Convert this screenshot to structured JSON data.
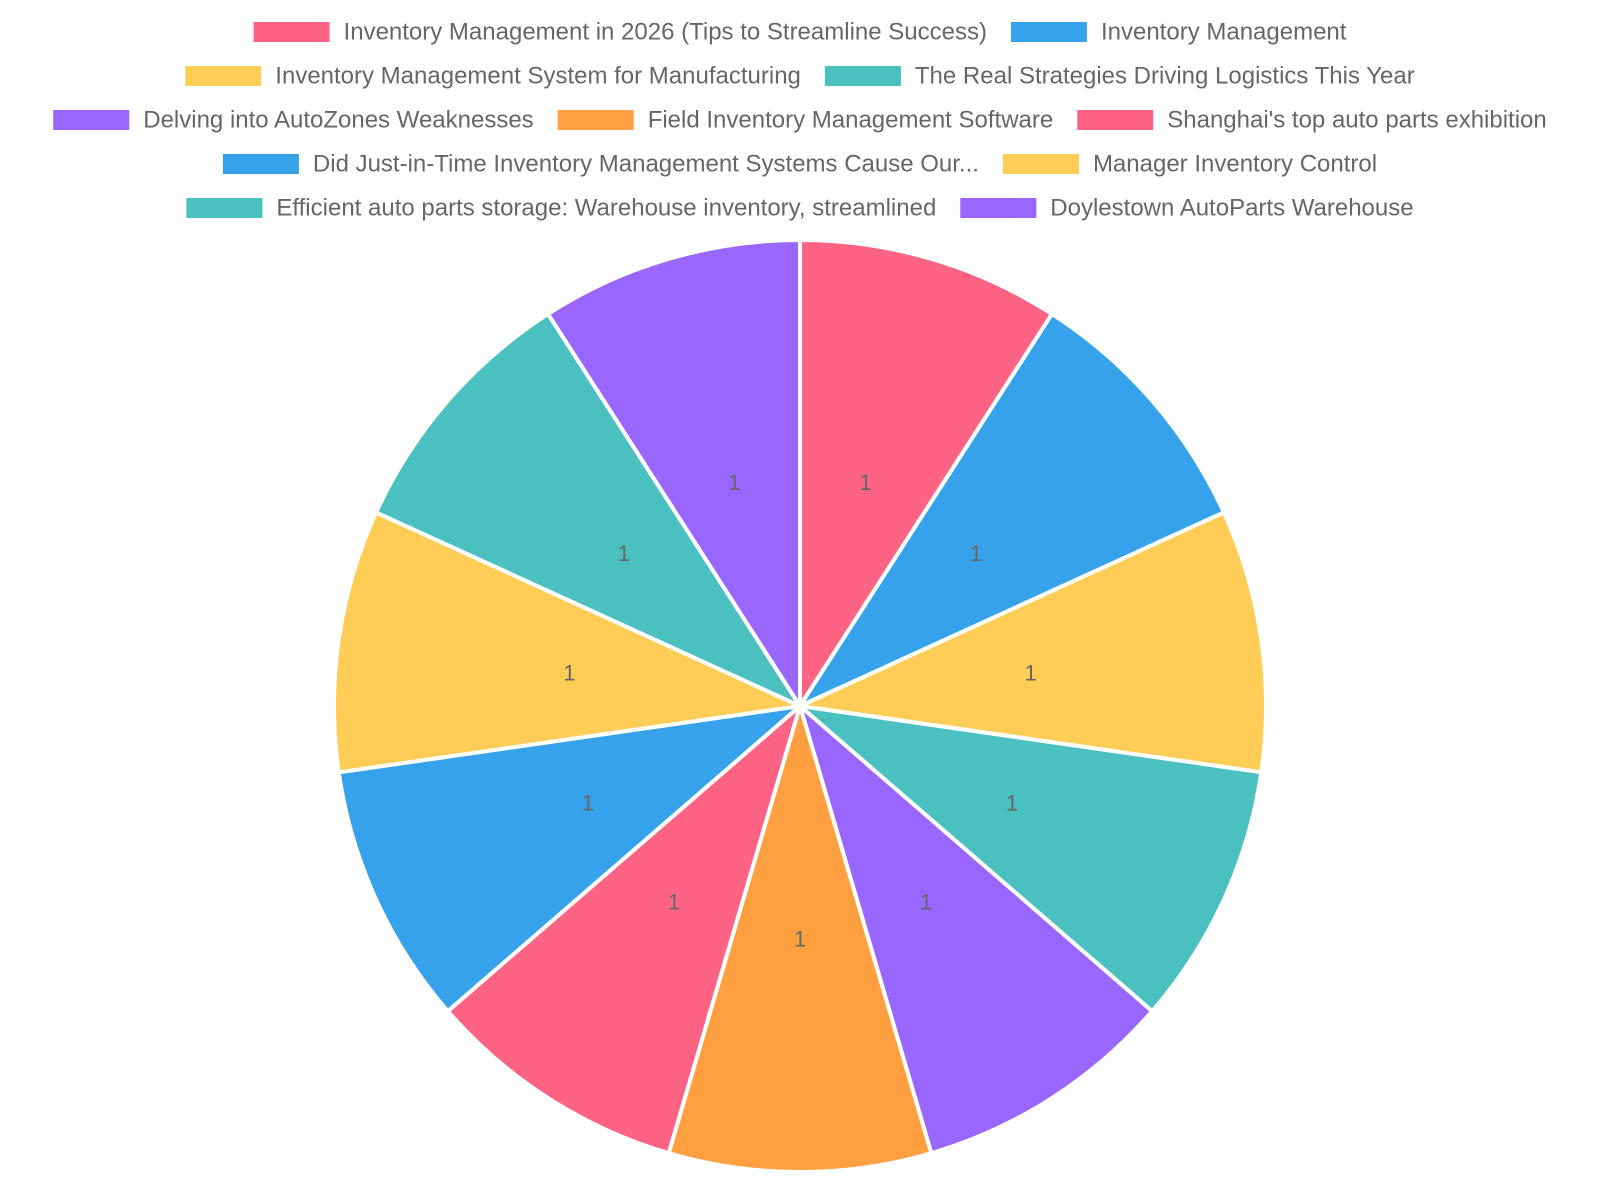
{
  "chart_data": {
    "type": "pie",
    "title": "",
    "categories": [
      "Inventory Management in 2026 (Tips to Streamline Success)",
      "Inventory Management",
      "Inventory Management System for Manufacturing",
      "The Real Strategies Driving Logistics This Year",
      "Delving into AutoZones Weaknesses",
      "Field Inventory Management Software",
      "Shanghai's top auto parts exhibition",
      "Did Just-in-Time Inventory Management Systems Cause Our...",
      "Manager Inventory Control",
      "Efficient auto parts storage: Warehouse inventory, streamlined",
      "Doylestown AutoParts Warehouse"
    ],
    "values": [
      1,
      1,
      1,
      1,
      1,
      1,
      1,
      1,
      1,
      1,
      1
    ],
    "data_labels": [
      "1",
      "1",
      "1",
      "1",
      "1",
      "1",
      "1",
      "1",
      "1",
      "1",
      "1"
    ],
    "colors": [
      "#ff6384",
      "#36a2eb",
      "#ffcd56",
      "#4bc0c0",
      "#9966ff",
      "#ff9f40",
      "#ff6384",
      "#36a2eb",
      "#ffcd56",
      "#4bc0c0",
      "#9966ff"
    ],
    "legend_position": "top",
    "label_color": "#666666",
    "border_color": "#ffffff"
  }
}
